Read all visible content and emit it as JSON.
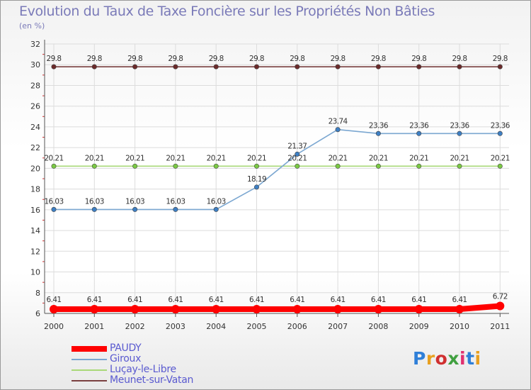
{
  "chart_data": {
    "type": "line",
    "title": "Evolution du Taux de Taxe Foncière sur les Propriétés Non Bâties",
    "unit_label": "(en %)",
    "xlabel": "",
    "ylabel": "",
    "categories": [
      "2000",
      "2001",
      "2002",
      "2003",
      "2004",
      "2005",
      "2006",
      "2007",
      "2008",
      "2009",
      "2010",
      "2011"
    ],
    "ylim": [
      6,
      32
    ],
    "yticks": [
      6,
      8,
      10,
      12,
      14,
      16,
      18,
      20,
      22,
      24,
      26,
      28,
      30,
      32
    ],
    "grid": true,
    "legend_position": "bottom-left",
    "series": [
      {
        "name": "PAUDY",
        "color": "#ff0000",
        "marker_color": "#ff0000",
        "width_style": "thick",
        "values": [
          6.41,
          6.41,
          6.41,
          6.41,
          6.41,
          6.41,
          6.41,
          6.41,
          6.41,
          6.41,
          6.41,
          6.72
        ],
        "labels": [
          "6.41",
          "6.41",
          "6.41",
          "6.41",
          "6.41",
          "6.41",
          "6.41",
          "6.41",
          "6.41",
          "6.41",
          "6.41",
          "6.72"
        ]
      },
      {
        "name": "Giroux",
        "color": "#7ba7d1",
        "marker_color": "#3d7fc4",
        "width_style": "thin",
        "values": [
          16.03,
          16.03,
          16.03,
          16.03,
          16.03,
          18.19,
          21.37,
          23.74,
          23.36,
          23.36,
          23.36,
          23.36
        ],
        "labels": [
          "16.03",
          "16.03",
          "16.03",
          "16.03",
          "16.03",
          "18.19",
          "21.37",
          "23.74",
          "23.36",
          "23.36",
          "23.36",
          "23.36"
        ]
      },
      {
        "name": "Luçay-le-Libre",
        "color": "#a8d878",
        "marker_color": "#7ac943",
        "width_style": "thin",
        "values": [
          20.21,
          20.21,
          20.21,
          20.21,
          20.21,
          20.21,
          20.21,
          20.21,
          20.21,
          20.21,
          20.21,
          20.21
        ],
        "labels": [
          "20.21",
          "20.21",
          "20.21",
          "20.21",
          "20.21",
          "20.21",
          "20.21",
          "20.21",
          "20.21",
          "20.21",
          "20.21",
          "20.21"
        ]
      },
      {
        "name": "Meunet-sur-Vatan",
        "color": "#7a4040",
        "marker_color": "#6b2a2a",
        "width_style": "thin",
        "values": [
          29.8,
          29.8,
          29.8,
          29.8,
          29.8,
          29.8,
          29.8,
          29.8,
          29.8,
          29.8,
          29.8,
          29.8
        ],
        "labels": [
          "29.8",
          "29.8",
          "29.8",
          "29.8",
          "29.8",
          "29.8",
          "29.8",
          "29.8",
          "29.8",
          "29.8",
          "29.8",
          "29.8"
        ]
      }
    ]
  },
  "logo": {
    "text": "Proxiti",
    "letter_colors": [
      "#2f7fd8",
      "#e8a020",
      "#d03030",
      "#40a040",
      "#e03070",
      "#2f7fd8",
      "#e8a020"
    ]
  }
}
